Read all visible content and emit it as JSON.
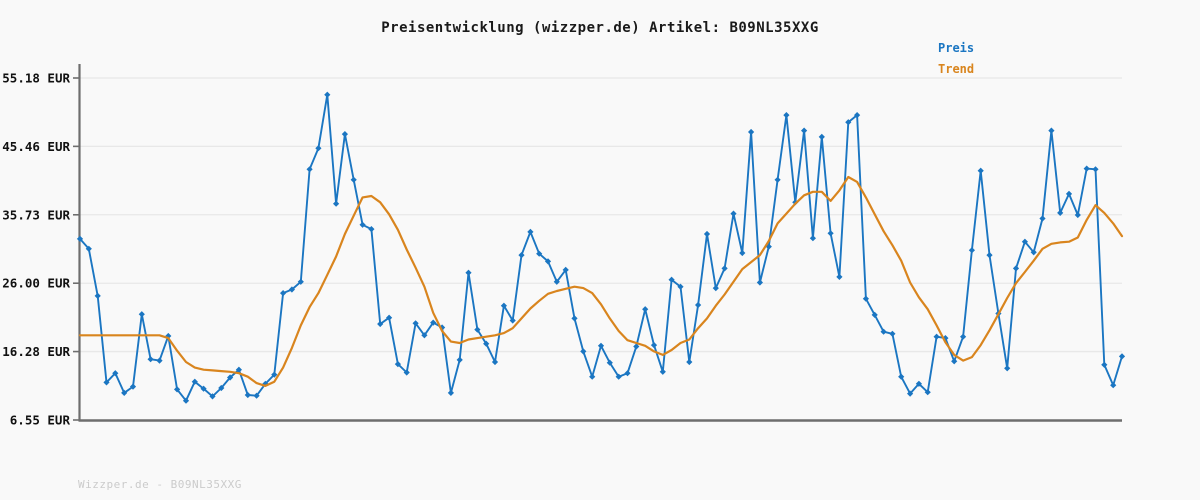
{
  "header": {
    "title": "Preisentwicklung (wizzper.de) Artikel: B09NL35XXG"
  },
  "legend": {
    "position": "top-right",
    "items": [
      {
        "label": "Preis",
        "color": "#1b76c2"
      },
      {
        "label": "Trend",
        "color": "#d9851e"
      }
    ]
  },
  "footer": {
    "text": "Wizzper.de - B09NL35XXG"
  },
  "colors": {
    "background": "#f9f9f9",
    "gridline": "#e8e8e8",
    "axis_spine": "#6e6e6e",
    "title_text": "#1a1a1a",
    "tick_label_text": "#111111",
    "watermark_text": "#cbcbcb",
    "preis_line": "#1b76c2",
    "trend_line": "#d9851e"
  },
  "chart_data": {
    "type": "line",
    "title": "Preisentwicklung (wizzper.de) Artikel: B09NL35XXG",
    "xlabel": "",
    "ylabel": "",
    "x_tick_labels": [],
    "grid": true,
    "legend_position": "top-right",
    "ylim": [
      6.55,
      55.18
    ],
    "y_ticks": [
      {
        "value": 55.18,
        "label": "55.18 EUR"
      },
      {
        "value": 45.46,
        "label": "45.46 EUR"
      },
      {
        "value": 35.73,
        "label": "35.73 EUR"
      },
      {
        "value": 26.0,
        "label": "26.00 EUR"
      },
      {
        "value": 16.28,
        "label": "16.28 EUR"
      },
      {
        "value": 6.55,
        "label": "6.55 EUR"
      }
    ],
    "unit": "EUR",
    "series": [
      {
        "name": "Preis",
        "color": "#1b76c2",
        "marker": "diamond",
        "values": [
          32.3,
          30.9,
          24.2,
          11.9,
          13.2,
          10.4,
          11.3,
          21.6,
          15.2,
          15.0,
          18.5,
          10.9,
          9.3,
          12.0,
          11.0,
          9.9,
          11.1,
          12.6,
          13.7,
          10.1,
          10.0,
          11.7,
          13.0,
          24.6,
          25.1,
          26.2,
          42.2,
          45.2,
          52.8,
          37.3,
          47.2,
          40.7,
          34.3,
          33.7,
          20.2,
          21.1,
          14.5,
          13.3,
          20.3,
          18.6,
          20.4,
          19.7,
          10.4,
          15.1,
          27.5,
          19.4,
          17.4,
          14.8,
          22.8,
          20.7,
          30.0,
          33.3,
          30.2,
          29.1,
          26.2,
          27.9,
          21.0,
          16.3,
          12.7,
          17.1,
          14.7,
          12.7,
          13.2,
          17.0,
          22.3,
          17.2,
          13.4,
          26.5,
          25.5,
          14.8,
          22.9,
          33.0,
          25.3,
          28.1,
          35.9,
          30.3,
          47.5,
          26.1,
          31.2,
          40.7,
          49.9,
          37.5,
          47.7,
          32.4,
          46.8,
          33.1,
          26.9,
          48.9,
          49.9,
          23.8,
          21.5,
          19.1,
          18.8,
          12.7,
          10.3,
          11.7,
          10.5,
          18.4,
          18.2,
          14.9,
          18.4,
          30.7,
          42.0,
          30.0,
          21.7,
          13.9,
          28.1,
          31.9,
          30.4,
          35.2,
          47.7,
          36.0,
          38.7,
          35.7,
          42.3,
          42.2,
          14.4,
          11.5,
          15.6
        ]
      },
      {
        "name": "Trend",
        "color": "#d9851e",
        "marker": "none",
        "values": [
          18.6,
          18.6,
          18.6,
          18.6,
          18.6,
          18.6,
          18.6,
          18.6,
          18.6,
          18.6,
          18.2,
          16.4,
          14.8,
          14.0,
          13.7,
          13.6,
          13.5,
          13.4,
          13.2,
          12.7,
          11.8,
          11.4,
          12.0,
          14.0,
          16.8,
          20.0,
          22.6,
          24.6,
          27.2,
          29.8,
          33.0,
          35.6,
          38.2,
          38.4,
          37.5,
          35.8,
          33.6,
          30.8,
          28.2,
          25.5,
          21.8,
          19.2,
          17.7,
          17.5,
          18.0,
          18.2,
          18.4,
          18.6,
          18.9,
          19.6,
          21.0,
          22.4,
          23.5,
          24.5,
          24.9,
          25.2,
          25.5,
          25.3,
          24.6,
          23.0,
          21.0,
          19.2,
          17.9,
          17.5,
          17.1,
          16.3,
          15.8,
          16.5,
          17.5,
          18.0,
          19.6,
          21.0,
          22.8,
          24.4,
          26.2,
          28.0,
          29.0,
          30.0,
          32.0,
          34.5,
          35.9,
          37.3,
          38.5,
          39.0,
          39.0,
          37.7,
          39.2,
          41.1,
          40.4,
          38.2,
          35.8,
          33.4,
          31.4,
          29.2,
          26.1,
          24.0,
          22.3,
          20.0,
          17.6,
          15.8,
          15.0,
          15.5,
          17.2,
          19.3,
          21.6,
          23.9,
          26.0,
          27.6,
          29.2,
          30.9,
          31.6,
          31.8,
          31.9,
          32.5,
          35.0,
          37.1,
          36.0,
          34.5,
          32.7
        ]
      }
    ]
  }
}
